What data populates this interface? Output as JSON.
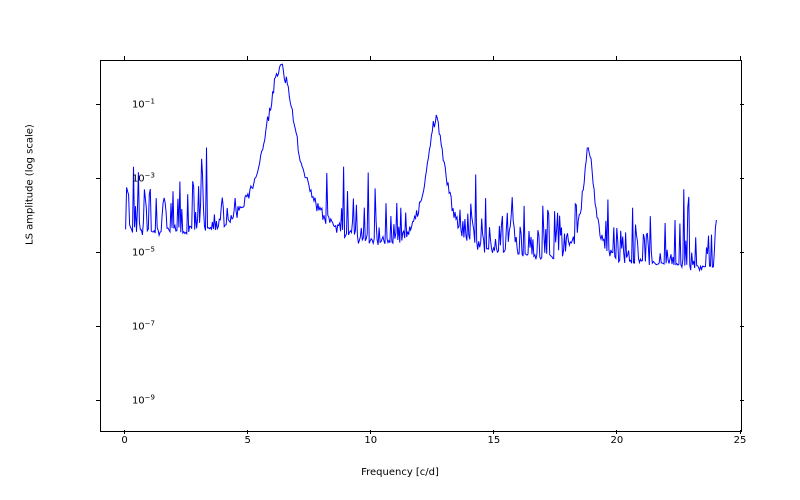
{
  "chart": {
    "type": "line",
    "xlabel": "Frequency [c/d]",
    "ylabel": "LS amplitude (log scale)",
    "line_color": "#0000ff",
    "line_width": 1.0,
    "background_color": "#ffffff",
    "border_color": "#000000",
    "xlim": [
      -1.0,
      25.0
    ],
    "ylim_log10": [
      -9.8,
      0.2
    ],
    "xticks": [
      0,
      5,
      10,
      15,
      20,
      25
    ],
    "xtick_labels": [
      "0",
      "5",
      "10",
      "15",
      "20",
      "25"
    ],
    "ytick_log10": [
      -9,
      -7,
      -5,
      -3,
      -1
    ],
    "ytick_labels": [
      "10⁻⁹",
      "10⁻⁷",
      "10⁻⁵",
      "10⁻³",
      "10⁻¹"
    ],
    "label_fontsize": 10,
    "tick_fontsize": 10,
    "data_points": 600,
    "peaks": [
      {
        "freq": 0.1,
        "log10_amp": -3.0,
        "width": 0.03
      },
      {
        "freq": 3.1,
        "log10_amp": -2.0,
        "width": 0.04
      },
      {
        "freq": 6.3,
        "log10_amp": 0.0,
        "width": 0.8
      },
      {
        "freq": 12.6,
        "log10_amp": -1.4,
        "width": 0.5
      },
      {
        "freq": 15.7,
        "log10_amp": -3.6,
        "width": 0.08
      },
      {
        "freq": 18.8,
        "log10_amp": -2.2,
        "width": 0.3
      }
    ],
    "noise_floor_start_log10": -4.5,
    "noise_floor_end_log10": -5.5,
    "noise_spread_log10": 1.5,
    "rng_seed": 42
  }
}
